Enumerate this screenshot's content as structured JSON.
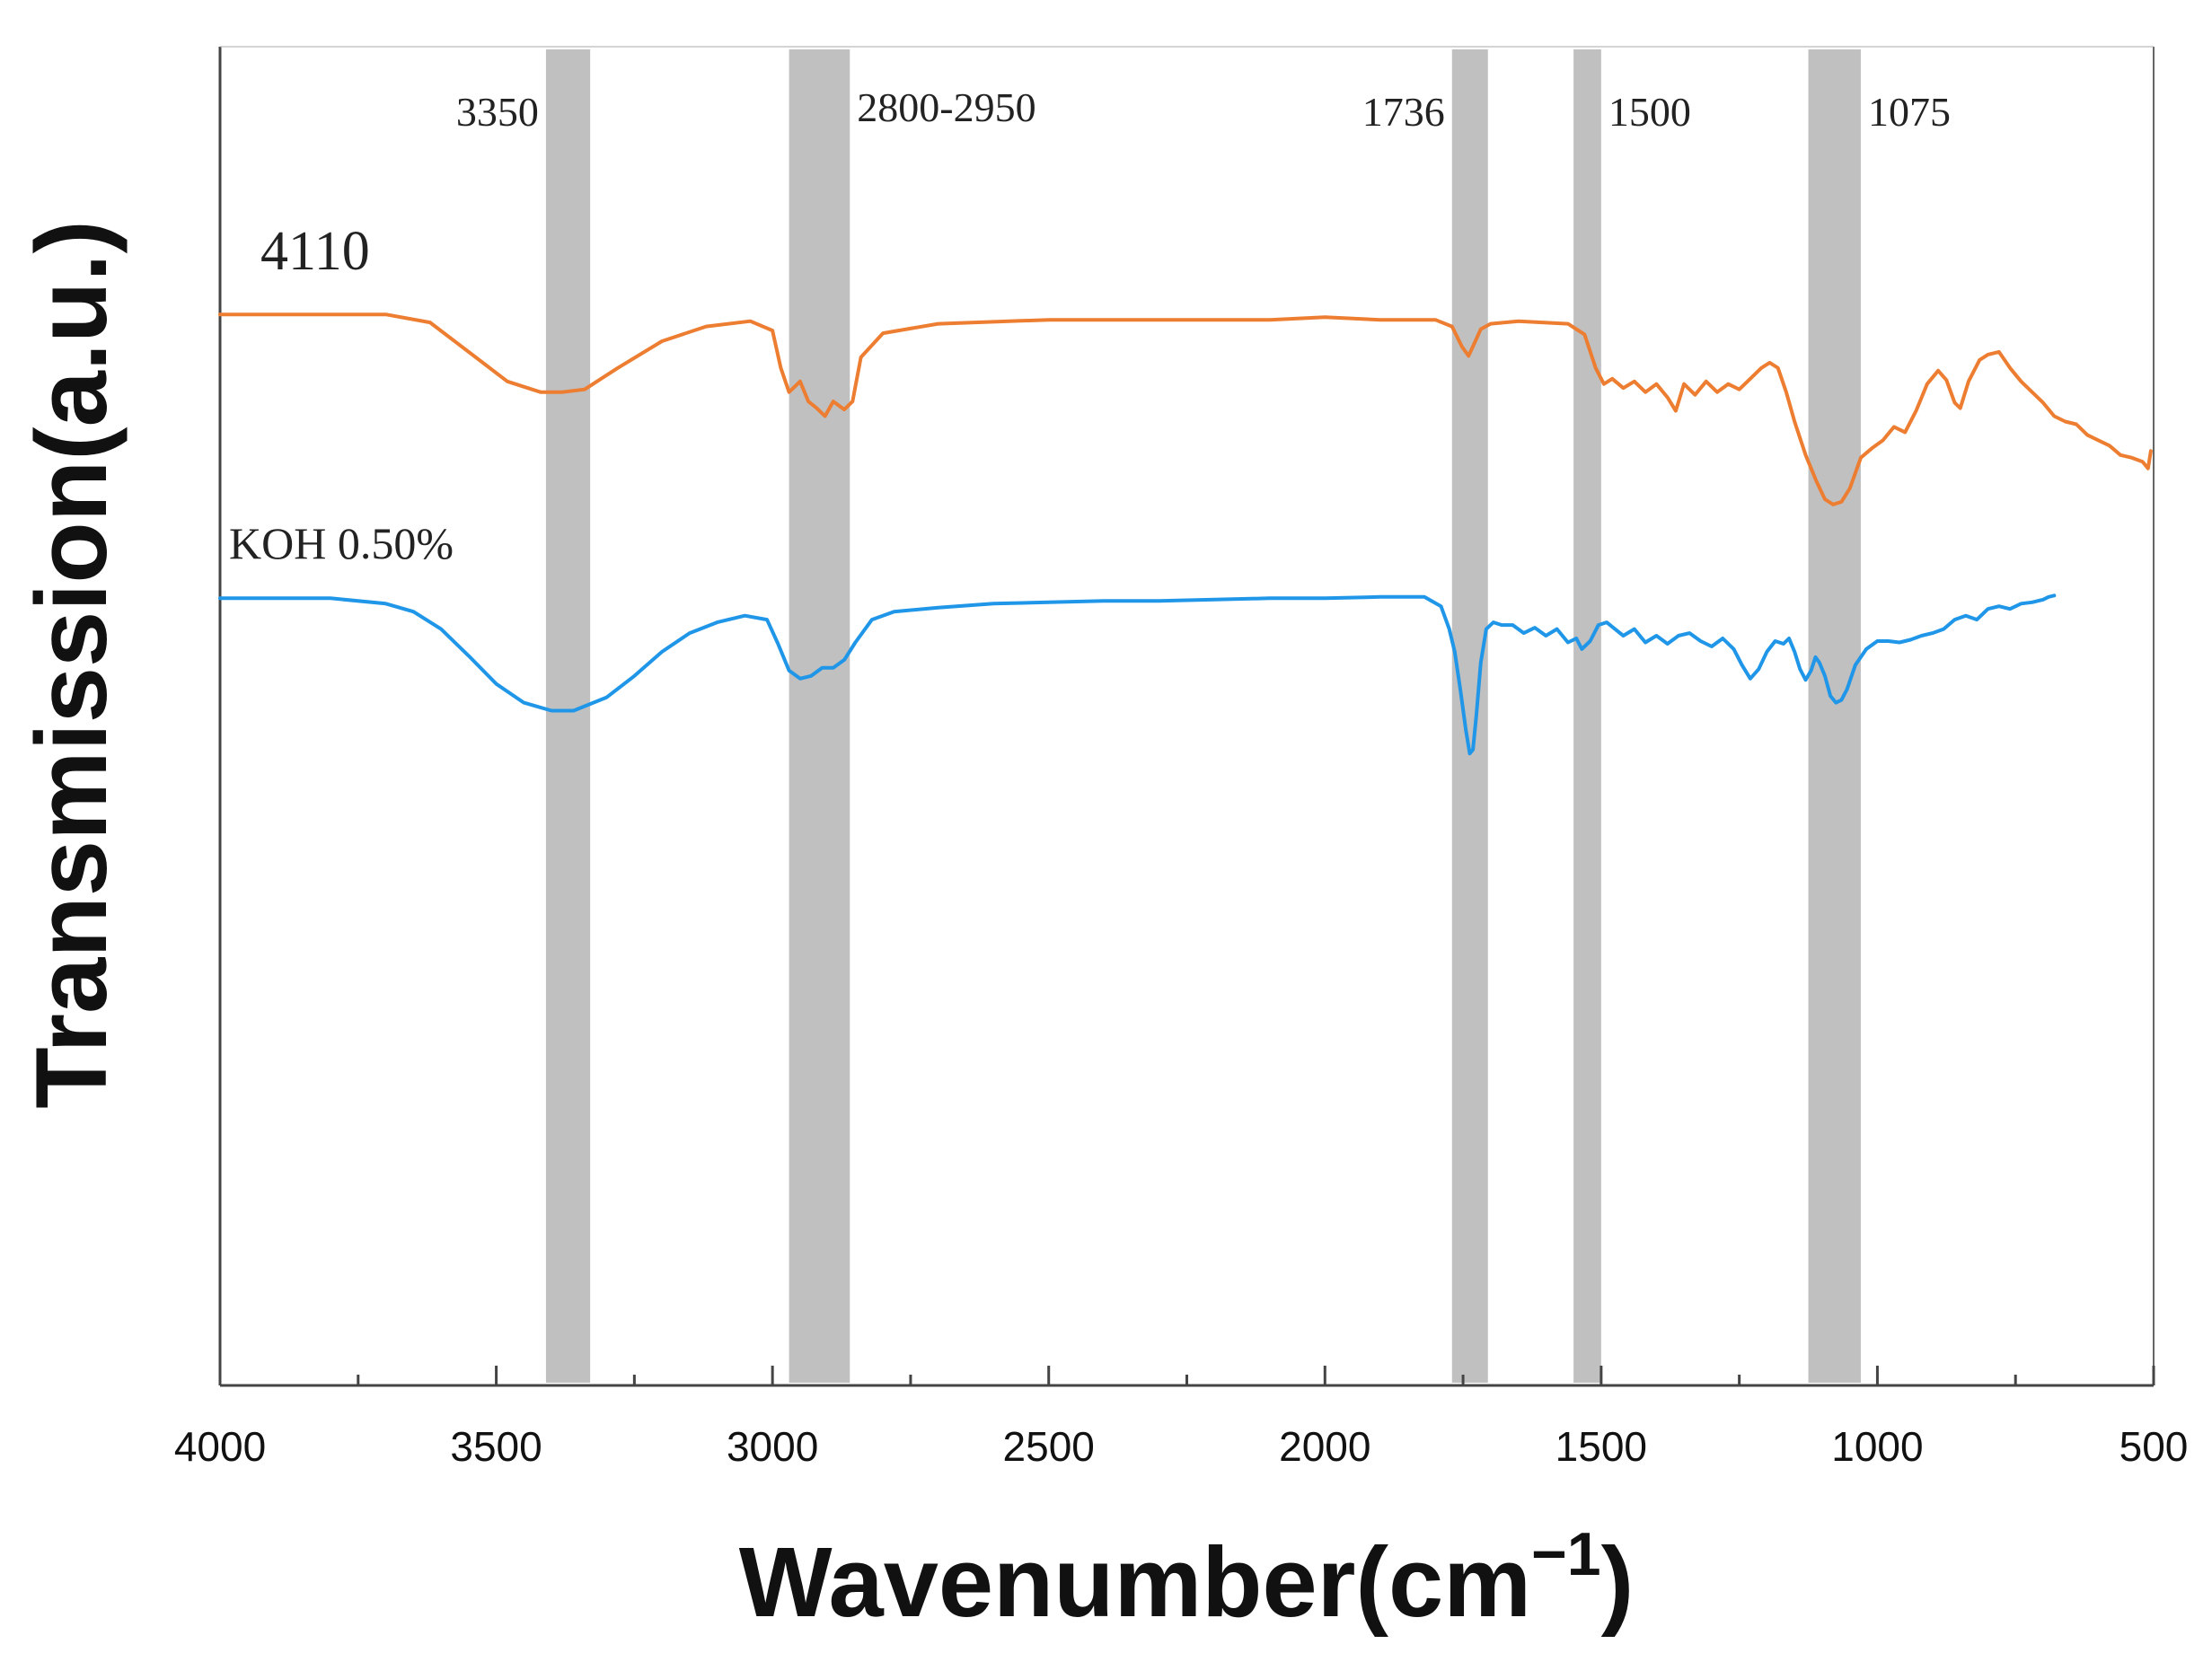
{
  "chart_data": {
    "type": "line",
    "title": "",
    "xlabel": "Wavenumber(cm",
    "xlabel_superscript": "−1",
    "xlabel_close": ")",
    "ylabel": "Transmission(a.u.)",
    "xlim": [
      4000,
      500
    ],
    "x_reversed": true,
    "ylim": [
      0,
      100
    ],
    "y_ticks_labeled": false,
    "grid": false,
    "x_ticks": [
      4000,
      3500,
      3000,
      2500,
      2000,
      1500,
      1000,
      500
    ],
    "x_tick_labels": [
      "4000",
      "3500",
      "3000",
      "2500",
      "2000",
      "1500",
      "1000",
      "500"
    ],
    "bands": [
      {
        "label": "3350",
        "from": 3410,
        "to": 3330
      },
      {
        "label": "2800-2950",
        "from": 2970,
        "to": 2860
      },
      {
        "label": "1736",
        "from": 1770,
        "to": 1705
      },
      {
        "label": "1500",
        "from": 1550,
        "to": 1500
      },
      {
        "label": "1075",
        "from": 1125,
        "to": 1030
      }
    ],
    "band_color": "#c0c0c0",
    "series": [
      {
        "name": "4110",
        "color": "#ed7d31",
        "x": [
          4000,
          3700,
          3620,
          3550,
          3480,
          3420,
          3380,
          3340,
          3280,
          3200,
          3120,
          3040,
          3000,
          2985,
          2970,
          2950,
          2935,
          2920,
          2905,
          2890,
          2870,
          2855,
          2840,
          2800,
          2700,
          2500,
          2300,
          2100,
          2000,
          1900,
          1800,
          1770,
          1752,
          1740,
          1730,
          1718,
          1700,
          1650,
          1560,
          1530,
          1510,
          1495,
          1480,
          1460,
          1440,
          1420,
          1400,
          1380,
          1365,
          1350,
          1330,
          1310,
          1290,
          1270,
          1250,
          1230,
          1210,
          1195,
          1180,
          1165,
          1150,
          1130,
          1110,
          1095,
          1080,
          1065,
          1050,
          1030,
          1010,
          990,
          970,
          950,
          930,
          910,
          890,
          875,
          860,
          850,
          835,
          815,
          800,
          780,
          760,
          740,
          720,
          700,
          680,
          660,
          640,
          620,
          600,
          580,
          560,
          540,
          520,
          510,
          505
        ],
        "y": [
          80.0,
          80.0,
          79.4,
          77.2,
          75.0,
          74.2,
          74.2,
          74.4,
          76.0,
          78.0,
          79.1,
          79.5,
          78.8,
          76.0,
          74.2,
          75.0,
          73.5,
          73.0,
          72.4,
          73.5,
          72.9,
          73.5,
          76.8,
          78.6,
          79.3,
          79.6,
          79.6,
          79.6,
          79.8,
          79.6,
          79.6,
          79.1,
          77.6,
          76.9,
          77.8,
          78.9,
          79.3,
          79.5,
          79.3,
          78.5,
          76.0,
          74.8,
          75.2,
          74.5,
          75.0,
          74.2,
          74.8,
          73.8,
          72.8,
          74.8,
          74.0,
          75.0,
          74.2,
          74.8,
          74.4,
          75.2,
          76.0,
          76.4,
          76.0,
          74.2,
          72.0,
          69.5,
          67.5,
          66.2,
          65.8,
          66.0,
          67.0,
          69.3,
          70.0,
          70.6,
          71.6,
          71.2,
          72.8,
          74.8,
          75.8,
          75.1,
          73.4,
          73.0,
          75.0,
          76.6,
          77.0,
          77.2,
          76.0,
          75.0,
          74.2,
          73.4,
          72.4,
          72.0,
          71.8,
          71.0,
          70.6,
          70.2,
          69.5,
          69.3,
          69.0,
          68.5,
          69.8
        ]
      },
      {
        "name": "KOH 0.50%",
        "color": "#1f96e8",
        "x": [
          4000,
          3800,
          3700,
          3650,
          3600,
          3550,
          3500,
          3450,
          3400,
          3360,
          3300,
          3250,
          3200,
          3150,
          3100,
          3050,
          3010,
          2990,
          2970,
          2950,
          2930,
          2910,
          2890,
          2870,
          2850,
          2820,
          2780,
          2700,
          2600,
          2500,
          2400,
          2300,
          2200,
          2100,
          2000,
          1900,
          1820,
          1790,
          1775,
          1765,
          1755,
          1745,
          1738,
          1732,
          1726,
          1718,
          1708,
          1695,
          1680,
          1660,
          1640,
          1620,
          1600,
          1580,
          1560,
          1545,
          1535,
          1520,
          1505,
          1490,
          1475,
          1460,
          1440,
          1420,
          1400,
          1380,
          1360,
          1340,
          1320,
          1300,
          1280,
          1260,
          1245,
          1230,
          1215,
          1200,
          1185,
          1170,
          1160,
          1150,
          1140,
          1130,
          1120,
          1112,
          1105,
          1095,
          1085,
          1075,
          1065,
          1055,
          1040,
          1020,
          1000,
          980,
          960,
          940,
          920,
          900,
          880,
          860,
          840,
          820,
          800,
          780,
          760,
          740,
          720,
          700,
          690,
          680
        ],
        "y": [
          58.8,
          58.8,
          58.4,
          57.8,
          56.5,
          54.5,
          52.4,
          51.0,
          50.4,
          50.4,
          51.4,
          53.0,
          54.8,
          56.2,
          57.0,
          57.5,
          57.2,
          55.4,
          53.4,
          52.8,
          53.0,
          53.6,
          53.6,
          54.2,
          55.5,
          57.2,
          57.8,
          58.1,
          58.4,
          58.5,
          58.6,
          58.6,
          58.7,
          58.8,
          58.8,
          58.9,
          58.9,
          58.2,
          56.5,
          54.8,
          52.0,
          49.0,
          47.2,
          47.5,
          50.0,
          54.0,
          56.5,
          57.0,
          56.8,
          56.8,
          56.2,
          56.6,
          56.0,
          56.5,
          55.5,
          55.8,
          55.0,
          55.6,
          56.8,
          57.0,
          56.5,
          56.0,
          56.5,
          55.5,
          56.0,
          55.4,
          56.0,
          56.2,
          55.6,
          55.2,
          55.8,
          55.0,
          53.8,
          52.8,
          53.5,
          54.8,
          55.6,
          55.4,
          55.8,
          54.8,
          53.5,
          52.7,
          53.4,
          54.4,
          54.0,
          53.0,
          51.5,
          51.0,
          51.2,
          52.0,
          53.8,
          55.0,
          55.6,
          55.6,
          55.5,
          55.7,
          56.0,
          56.2,
          56.5,
          57.2,
          57.5,
          57.2,
          58.0,
          58.2,
          58.0,
          58.4,
          58.5,
          58.7,
          58.9,
          59.0
        ]
      }
    ]
  }
}
